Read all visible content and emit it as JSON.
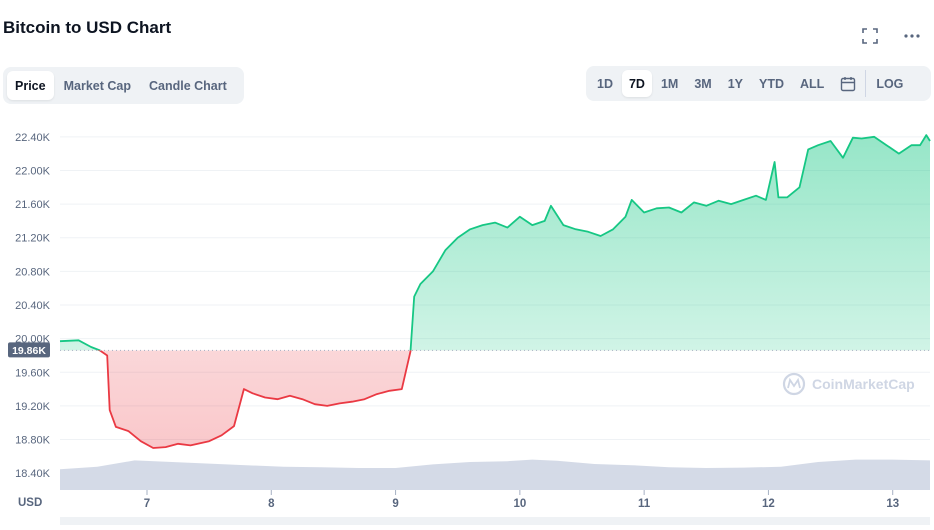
{
  "header": {
    "title": "Bitcoin to USD Chart",
    "fullscreen_icon": "fullscreen-icon",
    "more_icon": "more-horizontal-icon"
  },
  "view_tabs": [
    {
      "label": "Price",
      "active": true
    },
    {
      "label": "Market Cap",
      "active": false
    },
    {
      "label": "Candle Chart",
      "active": false
    }
  ],
  "range_tabs": [
    {
      "label": "1D",
      "active": false
    },
    {
      "label": "7D",
      "active": true
    },
    {
      "label": "1M",
      "active": false
    },
    {
      "label": "3M",
      "active": false
    },
    {
      "label": "1Y",
      "active": false
    },
    {
      "label": "YTD",
      "active": false
    },
    {
      "label": "ALL",
      "active": false
    }
  ],
  "calendar_icon": "calendar-icon",
  "log_label": "LOG",
  "watermark": "CoinMarketCap",
  "colors": {
    "up": "#16c784",
    "down": "#ea3943",
    "volume": "#cfd6e4",
    "grid": "#eff2f5",
    "reference_badge": "#58667e"
  },
  "chart_data": {
    "type": "line",
    "xlabel": "USD",
    "ylabel": "",
    "y_ticks": [
      "22.40K",
      "22.00K",
      "21.60K",
      "21.20K",
      "20.80K",
      "20.40K",
      "20.00K",
      "19.60K",
      "19.20K",
      "18.80K",
      "18.40K"
    ],
    "x_ticks": [
      "7",
      "8",
      "9",
      "10",
      "11",
      "12",
      "13"
    ],
    "ylim": [
      18200,
      22600
    ],
    "xlim": [
      6.3,
      13.3
    ],
    "reference_price": 19860,
    "reference_label": "19.86K",
    "grid": true,
    "series": [
      {
        "x": [
          6.3,
          6.45,
          6.55,
          6.62,
          6.68,
          6.7,
          6.75,
          6.85,
          6.95,
          7.05,
          7.15,
          7.25,
          7.35,
          7.5,
          7.6,
          7.7,
          7.78,
          7.85,
          7.95,
          8.05,
          8.15,
          8.25,
          8.35,
          8.45,
          8.55,
          8.65,
          8.75,
          8.85,
          8.95,
          9.05,
          9.12,
          9.15,
          9.2,
          9.3,
          9.4,
          9.5,
          9.6,
          9.7,
          9.8,
          9.9,
          10.0,
          10.1,
          10.2,
          10.25,
          10.35,
          10.45,
          10.55,
          10.65,
          10.75,
          10.85,
          10.9,
          11.0,
          11.1,
          11.2,
          11.3,
          11.4,
          11.5,
          11.6,
          11.7,
          11.8,
          11.9,
          11.98,
          12.05,
          12.08,
          12.15,
          12.25,
          12.32,
          12.4,
          12.5,
          12.6,
          12.68,
          12.75,
          12.85,
          12.95,
          13.05,
          13.15,
          13.22,
          13.27,
          13.3
        ],
        "y": [
          19970,
          19980,
          19900,
          19860,
          19800,
          19150,
          18950,
          18900,
          18780,
          18700,
          18710,
          18750,
          18730,
          18780,
          18850,
          18960,
          19400,
          19350,
          19300,
          19280,
          19320,
          19280,
          19220,
          19200,
          19230,
          19250,
          19280,
          19340,
          19380,
          19400,
          19850,
          20500,
          20650,
          20800,
          21050,
          21200,
          21300,
          21350,
          21380,
          21320,
          21450,
          21350,
          21400,
          21580,
          21350,
          21300,
          21270,
          21220,
          21300,
          21450,
          21650,
          21500,
          21550,
          21560,
          21500,
          21620,
          21580,
          21640,
          21600,
          21650,
          21700,
          21650,
          22100,
          21680,
          21680,
          21800,
          22250,
          22300,
          22350,
          22150,
          22390,
          22380,
          22400,
          22300,
          22200,
          22300,
          22300,
          22420,
          22350
        ]
      }
    ],
    "volume": {
      "x": [
        6.3,
        6.6,
        6.9,
        7.2,
        7.5,
        7.8,
        8.1,
        8.4,
        8.7,
        9.0,
        9.3,
        9.6,
        9.9,
        10.1,
        10.3,
        10.6,
        10.9,
        11.2,
        11.5,
        11.8,
        12.1,
        12.4,
        12.7,
        13.0,
        13.3
      ],
      "relative": [
        0.52,
        0.58,
        0.74,
        0.7,
        0.66,
        0.62,
        0.58,
        0.57,
        0.55,
        0.55,
        0.64,
        0.7,
        0.72,
        0.76,
        0.73,
        0.65,
        0.62,
        0.57,
        0.55,
        0.56,
        0.58,
        0.7,
        0.76,
        0.76,
        0.74
      ]
    }
  }
}
